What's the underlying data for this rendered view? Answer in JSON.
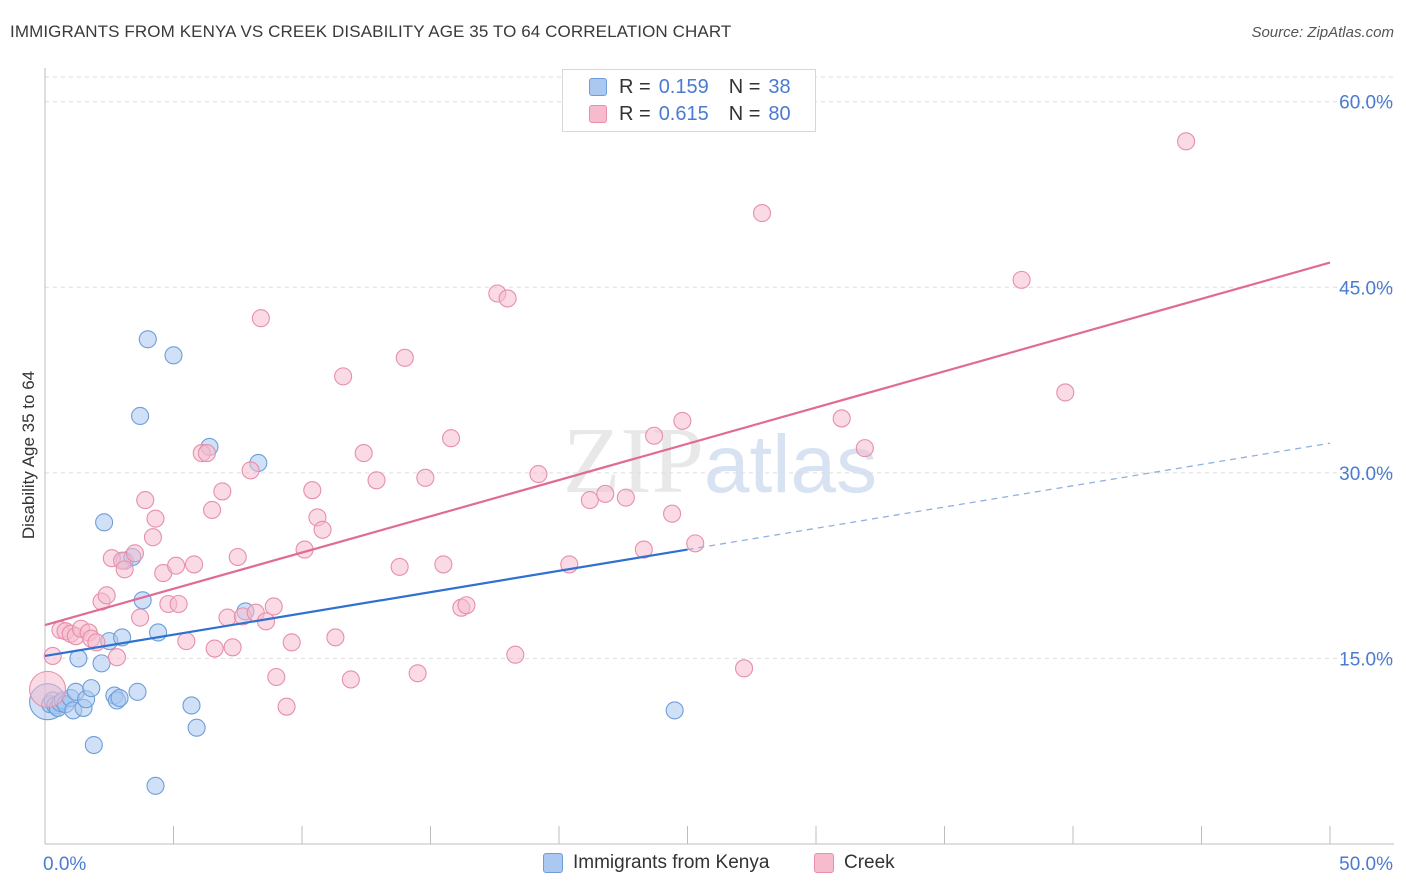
{
  "chart_data": {
    "type": "scatter",
    "title": "IMMIGRANTS FROM KENYA VS CREEK DISABILITY AGE 35 TO 64 CORRELATION CHART",
    "source": "Source: ZipAtlas.com",
    "xlabel": "",
    "ylabel": "Disability Age 35 to 64",
    "xlim": [
      0,
      50
    ],
    "ylim": [
      0,
      62
    ],
    "x_tick_labels": [
      "0.0%",
      "50.0%"
    ],
    "y_ticks": [
      15,
      30,
      45,
      60
    ],
    "y_tick_labels": [
      "15.0%",
      "30.0%",
      "45.0%",
      "60.0%"
    ],
    "watermark": "ZIPatlas",
    "colors": {
      "kenya_fill": "#aac8f0",
      "kenya_stroke": "#6d9ed8",
      "kenya_line": "#3070d0",
      "creek_fill": "#f6bccd",
      "creek_stroke": "#e78fab",
      "creek_line": "#e06b95",
      "axis_label": "#4a7bd0",
      "grid": "#dddddd"
    },
    "legend": {
      "r_label": "R =",
      "n_label": "N =",
      "entries": [
        {
          "series": "Immigrants from Kenya",
          "r": "0.159",
          "n": "38"
        },
        {
          "series": "Creek",
          "r": "0.615",
          "n": "80"
        }
      ]
    },
    "series": [
      {
        "name": "Immigrants from Kenya",
        "trend": {
          "x0": 0,
          "y0": 15.2,
          "x1": 25,
          "y1": 23.8,
          "dash_x1": 50,
          "dash_y1": 32.4
        },
        "points": [
          [
            0.1,
            11.5
          ],
          [
            0.2,
            11.3
          ],
          [
            0.3,
            11.6
          ],
          [
            0.4,
            11.2
          ],
          [
            0.5,
            11.0
          ],
          [
            0.6,
            11.4
          ],
          [
            0.7,
            11.6
          ],
          [
            0.8,
            11.3
          ],
          [
            1.0,
            11.8
          ],
          [
            1.1,
            10.8
          ],
          [
            1.2,
            12.3
          ],
          [
            1.3,
            15.0
          ],
          [
            1.5,
            11.0
          ],
          [
            1.6,
            11.7
          ],
          [
            1.8,
            12.6
          ],
          [
            1.9,
            8.0
          ],
          [
            2.2,
            14.6
          ],
          [
            2.3,
            26.0
          ],
          [
            2.5,
            16.4
          ],
          [
            2.7,
            12.0
          ],
          [
            2.8,
            11.6
          ],
          [
            2.9,
            11.8
          ],
          [
            3.0,
            16.7
          ],
          [
            3.1,
            22.9
          ],
          [
            3.4,
            23.2
          ],
          [
            3.6,
            12.3
          ],
          [
            3.7,
            34.6
          ],
          [
            3.8,
            19.7
          ],
          [
            4.0,
            40.8
          ],
          [
            4.3,
            4.7
          ],
          [
            4.4,
            17.1
          ],
          [
            5.0,
            39.5
          ],
          [
            5.7,
            11.2
          ],
          [
            5.9,
            9.4
          ],
          [
            6.4,
            32.1
          ],
          [
            7.8,
            18.8
          ],
          [
            8.3,
            30.8
          ],
          [
            24.5,
            10.8
          ]
        ]
      },
      {
        "name": "Creek",
        "trend": {
          "x0": 0,
          "y0": 17.7,
          "x1": 50,
          "y1": 47.0
        },
        "points": [
          [
            0.1,
            12.5
          ],
          [
            0.3,
            15.2
          ],
          [
            0.6,
            17.3
          ],
          [
            0.8,
            17.2
          ],
          [
            1.0,
            17.0
          ],
          [
            1.2,
            16.8
          ],
          [
            1.4,
            17.4
          ],
          [
            1.7,
            17.1
          ],
          [
            1.8,
            16.6
          ],
          [
            2.0,
            16.3
          ],
          [
            2.2,
            19.6
          ],
          [
            2.4,
            20.1
          ],
          [
            2.6,
            23.1
          ],
          [
            2.8,
            15.1
          ],
          [
            3.0,
            22.9
          ],
          [
            3.1,
            22.2
          ],
          [
            3.5,
            23.5
          ],
          [
            3.7,
            18.3
          ],
          [
            3.9,
            27.8
          ],
          [
            4.2,
            24.8
          ],
          [
            4.3,
            26.3
          ],
          [
            4.6,
            21.9
          ],
          [
            4.8,
            19.4
          ],
          [
            5.1,
            22.5
          ],
          [
            5.2,
            19.4
          ],
          [
            5.5,
            16.4
          ],
          [
            5.8,
            22.6
          ],
          [
            6.1,
            31.6
          ],
          [
            6.3,
            31.6
          ],
          [
            6.5,
            27.0
          ],
          [
            6.6,
            15.8
          ],
          [
            6.9,
            28.5
          ],
          [
            7.1,
            18.3
          ],
          [
            7.3,
            15.9
          ],
          [
            7.5,
            23.2
          ],
          [
            7.7,
            18.4
          ],
          [
            8.0,
            30.2
          ],
          [
            8.2,
            18.7
          ],
          [
            8.4,
            42.5
          ],
          [
            8.6,
            18.0
          ],
          [
            8.9,
            19.2
          ],
          [
            9.0,
            13.5
          ],
          [
            9.4,
            11.1
          ],
          [
            9.6,
            16.3
          ],
          [
            10.1,
            23.8
          ],
          [
            10.4,
            28.6
          ],
          [
            10.6,
            26.4
          ],
          [
            10.8,
            25.4
          ],
          [
            11.3,
            16.7
          ],
          [
            11.6,
            37.8
          ],
          [
            11.9,
            13.3
          ],
          [
            12.4,
            31.6
          ],
          [
            12.9,
            29.4
          ],
          [
            13.8,
            22.4
          ],
          [
            14.0,
            39.3
          ],
          [
            14.5,
            13.8
          ],
          [
            14.8,
            29.6
          ],
          [
            15.5,
            22.6
          ],
          [
            15.8,
            32.8
          ],
          [
            16.2,
            19.1
          ],
          [
            16.4,
            19.3
          ],
          [
            17.6,
            44.5
          ],
          [
            18.0,
            44.1
          ],
          [
            18.3,
            15.3
          ],
          [
            19.2,
            29.9
          ],
          [
            20.4,
            22.6
          ],
          [
            21.2,
            27.8
          ],
          [
            21.8,
            28.3
          ],
          [
            22.6,
            28.0
          ],
          [
            23.3,
            23.8
          ],
          [
            23.7,
            33.0
          ],
          [
            24.4,
            26.7
          ],
          [
            24.8,
            34.2
          ],
          [
            25.3,
            24.3
          ],
          [
            27.2,
            14.2
          ],
          [
            27.9,
            51.0
          ],
          [
            31.0,
            34.4
          ],
          [
            31.9,
            32.0
          ],
          [
            38.0,
            45.6
          ],
          [
            39.7,
            36.5
          ],
          [
            44.4,
            56.8
          ]
        ]
      }
    ]
  }
}
